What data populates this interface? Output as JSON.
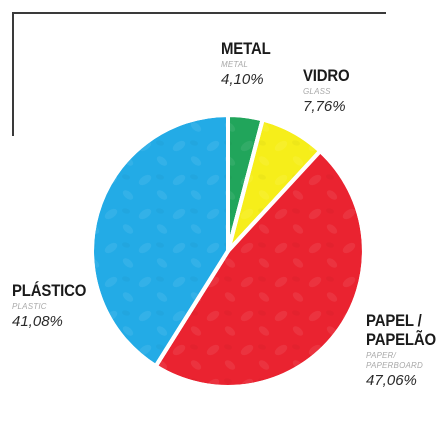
{
  "chart_data": {
    "type": "pie",
    "start_angle_deg": 0,
    "direction": "clockwise",
    "slices": [
      {
        "key": "metal",
        "label": "METAL",
        "label_line2": "",
        "en_label": "METAL",
        "en_label_line2": "",
        "value": 4.1,
        "value_text": "4,10%",
        "color": "#21a55b"
      },
      {
        "key": "vidro",
        "label": "VIDRO",
        "label_line2": "",
        "en_label": "GLASS",
        "en_label_line2": "",
        "value": 7.76,
        "value_text": "7,76%",
        "color": "#f6ee1a"
      },
      {
        "key": "papel",
        "label": "PAPEL /",
        "label_line2": "PAPELÃO",
        "en_label": "PAPER/",
        "en_label_line2": "PAPERBOARD",
        "value": 47.06,
        "value_text": "47,06%",
        "color": "#ea2330"
      },
      {
        "key": "plastico",
        "label": "PLÁSTICO",
        "label_line2": "",
        "en_label": "PLASTIC",
        "en_label_line2": "",
        "value": 41.08,
        "value_text": "41,08%",
        "color": "#23abe6"
      }
    ]
  }
}
